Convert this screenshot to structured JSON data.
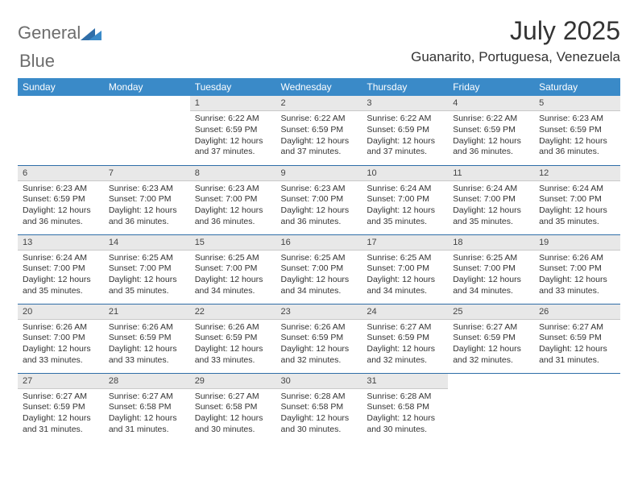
{
  "brand": {
    "word1": "General",
    "word2": "Blue"
  },
  "title": "July 2025",
  "location": "Guanarito, Portuguesa, Venezuela",
  "colors": {
    "header_bg": "#3a8ac8",
    "header_text": "#ffffff",
    "daynum_bg": "#e8e8e8",
    "week_divider": "#2f6ea8",
    "logo_gray": "#6d6d6d",
    "logo_blue": "#2f7fbf",
    "text": "#333333"
  },
  "day_headers": [
    "Sunday",
    "Monday",
    "Tuesday",
    "Wednesday",
    "Thursday",
    "Friday",
    "Saturday"
  ],
  "weeks": [
    [
      null,
      null,
      {
        "n": "1",
        "sr": "Sunrise: 6:22 AM",
        "ss": "Sunset: 6:59 PM",
        "dl": "Daylight: 12 hours and 37 minutes."
      },
      {
        "n": "2",
        "sr": "Sunrise: 6:22 AM",
        "ss": "Sunset: 6:59 PM",
        "dl": "Daylight: 12 hours and 37 minutes."
      },
      {
        "n": "3",
        "sr": "Sunrise: 6:22 AM",
        "ss": "Sunset: 6:59 PM",
        "dl": "Daylight: 12 hours and 37 minutes."
      },
      {
        "n": "4",
        "sr": "Sunrise: 6:22 AM",
        "ss": "Sunset: 6:59 PM",
        "dl": "Daylight: 12 hours and 36 minutes."
      },
      {
        "n": "5",
        "sr": "Sunrise: 6:23 AM",
        "ss": "Sunset: 6:59 PM",
        "dl": "Daylight: 12 hours and 36 minutes."
      }
    ],
    [
      {
        "n": "6",
        "sr": "Sunrise: 6:23 AM",
        "ss": "Sunset: 6:59 PM",
        "dl": "Daylight: 12 hours and 36 minutes."
      },
      {
        "n": "7",
        "sr": "Sunrise: 6:23 AM",
        "ss": "Sunset: 7:00 PM",
        "dl": "Daylight: 12 hours and 36 minutes."
      },
      {
        "n": "8",
        "sr": "Sunrise: 6:23 AM",
        "ss": "Sunset: 7:00 PM",
        "dl": "Daylight: 12 hours and 36 minutes."
      },
      {
        "n": "9",
        "sr": "Sunrise: 6:23 AM",
        "ss": "Sunset: 7:00 PM",
        "dl": "Daylight: 12 hours and 36 minutes."
      },
      {
        "n": "10",
        "sr": "Sunrise: 6:24 AM",
        "ss": "Sunset: 7:00 PM",
        "dl": "Daylight: 12 hours and 35 minutes."
      },
      {
        "n": "11",
        "sr": "Sunrise: 6:24 AM",
        "ss": "Sunset: 7:00 PM",
        "dl": "Daylight: 12 hours and 35 minutes."
      },
      {
        "n": "12",
        "sr": "Sunrise: 6:24 AM",
        "ss": "Sunset: 7:00 PM",
        "dl": "Daylight: 12 hours and 35 minutes."
      }
    ],
    [
      {
        "n": "13",
        "sr": "Sunrise: 6:24 AM",
        "ss": "Sunset: 7:00 PM",
        "dl": "Daylight: 12 hours and 35 minutes."
      },
      {
        "n": "14",
        "sr": "Sunrise: 6:25 AM",
        "ss": "Sunset: 7:00 PM",
        "dl": "Daylight: 12 hours and 35 minutes."
      },
      {
        "n": "15",
        "sr": "Sunrise: 6:25 AM",
        "ss": "Sunset: 7:00 PM",
        "dl": "Daylight: 12 hours and 34 minutes."
      },
      {
        "n": "16",
        "sr": "Sunrise: 6:25 AM",
        "ss": "Sunset: 7:00 PM",
        "dl": "Daylight: 12 hours and 34 minutes."
      },
      {
        "n": "17",
        "sr": "Sunrise: 6:25 AM",
        "ss": "Sunset: 7:00 PM",
        "dl": "Daylight: 12 hours and 34 minutes."
      },
      {
        "n": "18",
        "sr": "Sunrise: 6:25 AM",
        "ss": "Sunset: 7:00 PM",
        "dl": "Daylight: 12 hours and 34 minutes."
      },
      {
        "n": "19",
        "sr": "Sunrise: 6:26 AM",
        "ss": "Sunset: 7:00 PM",
        "dl": "Daylight: 12 hours and 33 minutes."
      }
    ],
    [
      {
        "n": "20",
        "sr": "Sunrise: 6:26 AM",
        "ss": "Sunset: 7:00 PM",
        "dl": "Daylight: 12 hours and 33 minutes."
      },
      {
        "n": "21",
        "sr": "Sunrise: 6:26 AM",
        "ss": "Sunset: 6:59 PM",
        "dl": "Daylight: 12 hours and 33 minutes."
      },
      {
        "n": "22",
        "sr": "Sunrise: 6:26 AM",
        "ss": "Sunset: 6:59 PM",
        "dl": "Daylight: 12 hours and 33 minutes."
      },
      {
        "n": "23",
        "sr": "Sunrise: 6:26 AM",
        "ss": "Sunset: 6:59 PM",
        "dl": "Daylight: 12 hours and 32 minutes."
      },
      {
        "n": "24",
        "sr": "Sunrise: 6:27 AM",
        "ss": "Sunset: 6:59 PM",
        "dl": "Daylight: 12 hours and 32 minutes."
      },
      {
        "n": "25",
        "sr": "Sunrise: 6:27 AM",
        "ss": "Sunset: 6:59 PM",
        "dl": "Daylight: 12 hours and 32 minutes."
      },
      {
        "n": "26",
        "sr": "Sunrise: 6:27 AM",
        "ss": "Sunset: 6:59 PM",
        "dl": "Daylight: 12 hours and 31 minutes."
      }
    ],
    [
      {
        "n": "27",
        "sr": "Sunrise: 6:27 AM",
        "ss": "Sunset: 6:59 PM",
        "dl": "Daylight: 12 hours and 31 minutes."
      },
      {
        "n": "28",
        "sr": "Sunrise: 6:27 AM",
        "ss": "Sunset: 6:58 PM",
        "dl": "Daylight: 12 hours and 31 minutes."
      },
      {
        "n": "29",
        "sr": "Sunrise: 6:27 AM",
        "ss": "Sunset: 6:58 PM",
        "dl": "Daylight: 12 hours and 30 minutes."
      },
      {
        "n": "30",
        "sr": "Sunrise: 6:28 AM",
        "ss": "Sunset: 6:58 PM",
        "dl": "Daylight: 12 hours and 30 minutes."
      },
      {
        "n": "31",
        "sr": "Sunrise: 6:28 AM",
        "ss": "Sunset: 6:58 PM",
        "dl": "Daylight: 12 hours and 30 minutes."
      },
      null,
      null
    ]
  ]
}
